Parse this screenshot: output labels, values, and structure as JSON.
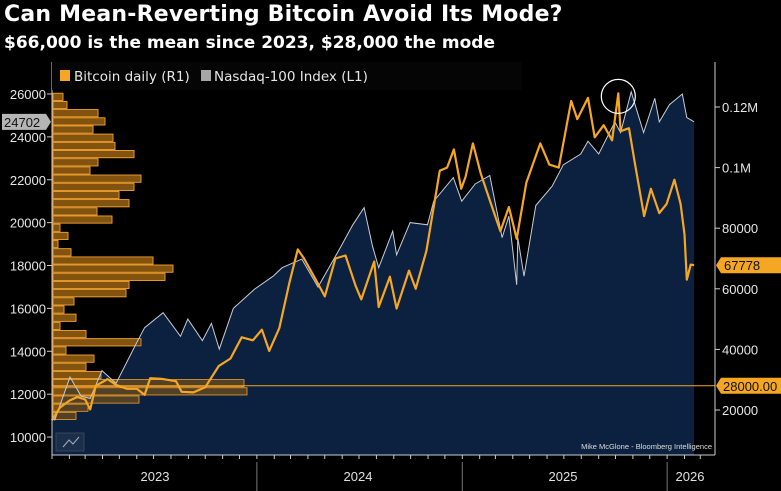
{
  "title": "Can Mean-Reverting Bitcoin Avoid Its Mode?",
  "subtitle": "$66,000 is the mean since 2023, $28,000 the mode",
  "chart_data": {
    "type": "line",
    "title": "Can Mean-Reverting Bitcoin Avoid Its Mode?",
    "subtitle": "$66,000 is the mean since 2023, $28,000 the mode",
    "credit": "Mike McGlone - Bloomberg Intelligence",
    "x_tick_labels": [
      "2023",
      "2024",
      "2025",
      "2026"
    ],
    "left_axis": {
      "range": [
        9000,
        27500
      ],
      "ticks": [
        10000,
        12000,
        14000,
        16000,
        18000,
        20000,
        22000,
        24000,
        26000
      ],
      "tick_labels": [
        "10000",
        "12000",
        "14000",
        "16000",
        "18000",
        "20000",
        "22000",
        "24000",
        "26000"
      ],
      "last_value_label": "24702"
    },
    "right_axis": {
      "range": [
        5000,
        135000
      ],
      "ticks": [
        20000,
        40000,
        60000,
        80000,
        100000,
        120000
      ],
      "tick_labels": [
        "20000",
        "40000",
        "60000",
        "80000",
        "0.1M",
        "0.12M"
      ],
      "last_value_label": "67778",
      "mode_label": "28000.00"
    },
    "mode_line": 28000,
    "annotation": "circle around Bitcoin peak (Oct 2025)",
    "legend": [
      {
        "label": "Bitcoin daily (R1)",
        "color": "#f5a623"
      },
      {
        "label": "Nasdaq-100 Index (L1)",
        "color": "#a6a6a6"
      }
    ],
    "legend_position": "top-left",
    "colors": {
      "bitcoin": "#f5a623",
      "nasdaq_line": "#c8ccd4",
      "nasdaq_area": "#0c2342",
      "histogram_fill": "#8a5a10",
      "histogram_edge": "#f0a030"
    },
    "series": [
      {
        "name": "Bitcoin daily (R1)",
        "axis": "right",
        "points": [
          [
            "2023-01-01",
            16600
          ],
          [
            "2023-01-15",
            20800
          ],
          [
            "2023-02-01",
            23100
          ],
          [
            "2023-02-15",
            24300
          ],
          [
            "2023-03-01",
            23500
          ],
          [
            "2023-03-10",
            20200
          ],
          [
            "2023-03-20",
            28000
          ],
          [
            "2023-04-10",
            30200
          ],
          [
            "2023-04-25",
            28300
          ],
          [
            "2023-05-15",
            27000
          ],
          [
            "2023-06-01",
            27000
          ],
          [
            "2023-06-15",
            25000
          ],
          [
            "2023-06-25",
            30500
          ],
          [
            "2023-07-15",
            30300
          ],
          [
            "2023-08-10",
            29500
          ],
          [
            "2023-08-20",
            26000
          ],
          [
            "2023-09-10",
            25800
          ],
          [
            "2023-10-01",
            27500
          ],
          [
            "2023-10-25",
            34500
          ],
          [
            "2023-11-15",
            37000
          ],
          [
            "2023-12-05",
            44000
          ],
          [
            "2023-12-25",
            43000
          ],
          [
            "2024-01-10",
            46500
          ],
          [
            "2024-01-23",
            39500
          ],
          [
            "2024-02-10",
            47000
          ],
          [
            "2024-02-28",
            62000
          ],
          [
            "2024-03-14",
            73000
          ],
          [
            "2024-03-25",
            70000
          ],
          [
            "2024-04-15",
            63000
          ],
          [
            "2024-05-01",
            57500
          ],
          [
            "2024-05-20",
            70000
          ],
          [
            "2024-06-07",
            71000
          ],
          [
            "2024-06-25",
            61000
          ],
          [
            "2024-07-05",
            56500
          ],
          [
            "2024-07-28",
            69000
          ],
          [
            "2024-08-05",
            54000
          ],
          [
            "2024-08-25",
            64000
          ],
          [
            "2024-09-06",
            53500
          ],
          [
            "2024-09-28",
            66000
          ],
          [
            "2024-10-10",
            60000
          ],
          [
            "2024-10-29",
            72500
          ],
          [
            "2024-11-12",
            88000
          ],
          [
            "2024-11-22",
            99000
          ],
          [
            "2024-12-05",
            100000
          ],
          [
            "2024-12-17",
            106000
          ],
          [
            "2024-12-30",
            93000
          ],
          [
            "2025-01-07",
            97000
          ],
          [
            "2025-01-20",
            108000
          ],
          [
            "2025-02-03",
            98000
          ],
          [
            "2025-02-25",
            86000
          ],
          [
            "2025-03-10",
            79000
          ],
          [
            "2025-03-25",
            87000
          ],
          [
            "2025-04-08",
            76500
          ],
          [
            "2025-04-25",
            95000
          ],
          [
            "2025-05-20",
            108000
          ],
          [
            "2025-06-05",
            101000
          ],
          [
            "2025-06-22",
            100000
          ],
          [
            "2025-07-14",
            122000
          ],
          [
            "2025-07-25",
            116000
          ],
          [
            "2025-08-13",
            123000
          ],
          [
            "2025-08-25",
            110000
          ],
          [
            "2025-09-10",
            114000
          ],
          [
            "2025-09-25",
            109000
          ],
          [
            "2025-10-06",
            124500
          ],
          [
            "2025-10-10",
            112000
          ],
          [
            "2025-10-25",
            113000
          ],
          [
            "2025-11-05",
            101000
          ],
          [
            "2025-11-21",
            84000
          ],
          [
            "2025-12-03",
            93000
          ],
          [
            "2025-12-18",
            85000
          ],
          [
            "2025-12-31",
            88000
          ],
          [
            "2026-01-14",
            96000
          ],
          [
            "2026-01-25",
            88000
          ],
          [
            "2026-02-01",
            78000
          ],
          [
            "2026-02-05",
            63000
          ],
          [
            "2026-02-12",
            68000
          ],
          [
            "2026-02-18",
            67778
          ]
        ]
      },
      {
        "name": "Nasdaq-100 Index (L1)",
        "axis": "left",
        "points": [
          [
            "2023-01-01",
            10900
          ],
          [
            "2023-01-06",
            10800
          ],
          [
            "2023-02-02",
            12800
          ],
          [
            "2023-02-22",
            11900
          ],
          [
            "2023-03-10",
            11800
          ],
          [
            "2023-03-31",
            13100
          ],
          [
            "2023-04-25",
            12500
          ],
          [
            "2023-05-30",
            14300
          ],
          [
            "2023-06-15",
            15100
          ],
          [
            "2023-07-18",
            15800
          ],
          [
            "2023-08-18",
            14700
          ],
          [
            "2023-08-31",
            15500
          ],
          [
            "2023-09-26",
            14500
          ],
          [
            "2023-10-12",
            15300
          ],
          [
            "2023-10-26",
            14100
          ],
          [
            "2023-11-20",
            16000
          ],
          [
            "2023-12-28",
            16900
          ],
          [
            "2024-01-30",
            17500
          ],
          [
            "2024-02-15",
            17900
          ],
          [
            "2024-03-21",
            18300
          ],
          [
            "2024-04-19",
            17000
          ],
          [
            "2024-05-28",
            18800
          ],
          [
            "2024-06-20",
            19900
          ],
          [
            "2024-07-10",
            20700
          ],
          [
            "2024-07-25",
            18900
          ],
          [
            "2024-08-05",
            17900
          ],
          [
            "2024-08-30",
            19600
          ],
          [
            "2024-09-06",
            18500
          ],
          [
            "2024-09-30",
            20000
          ],
          [
            "2024-10-31",
            19900
          ],
          [
            "2024-11-11",
            21000
          ],
          [
            "2024-12-16",
            22100
          ],
          [
            "2024-12-31",
            21000
          ],
          [
            "2025-01-24",
            21800
          ],
          [
            "2025-02-19",
            22200
          ],
          [
            "2025-03-13",
            19300
          ],
          [
            "2025-03-25",
            20300
          ],
          [
            "2025-04-08",
            17100
          ],
          [
            "2025-04-10",
            19300
          ],
          [
            "2025-04-21",
            17500
          ],
          [
            "2025-05-12",
            20800
          ],
          [
            "2025-06-10",
            21700
          ],
          [
            "2025-06-30",
            22700
          ],
          [
            "2025-07-31",
            23200
          ],
          [
            "2025-08-13",
            23800
          ],
          [
            "2025-09-01",
            23200
          ],
          [
            "2025-09-30",
            24700
          ],
          [
            "2025-10-10",
            24200
          ],
          [
            "2025-10-29",
            26100
          ],
          [
            "2025-11-20",
            24200
          ],
          [
            "2025-12-10",
            25800
          ],
          [
            "2025-12-18",
            24700
          ],
          [
            "2026-01-05",
            25500
          ],
          [
            "2026-01-28",
            26000
          ],
          [
            "2026-02-05",
            24900
          ],
          [
            "2026-02-18",
            24702
          ]
        ]
      }
    ],
    "histogram": {
      "axis": "right",
      "bin_start": 16700,
      "bin_width": 2700,
      "frequencies_low_to_high": [
        23,
        35,
        86,
        194,
        191,
        48,
        33,
        41,
        13,
        88,
        33,
        7,
        23,
        11,
        21,
        73,
        76,
        112,
        120,
        100,
        18,
        5,
        15,
        7,
        59,
        44,
        76,
        66,
        81,
        88,
        37,
        45,
        81,
        62,
        60,
        40,
        52,
        45,
        14,
        10
      ]
    }
  }
}
